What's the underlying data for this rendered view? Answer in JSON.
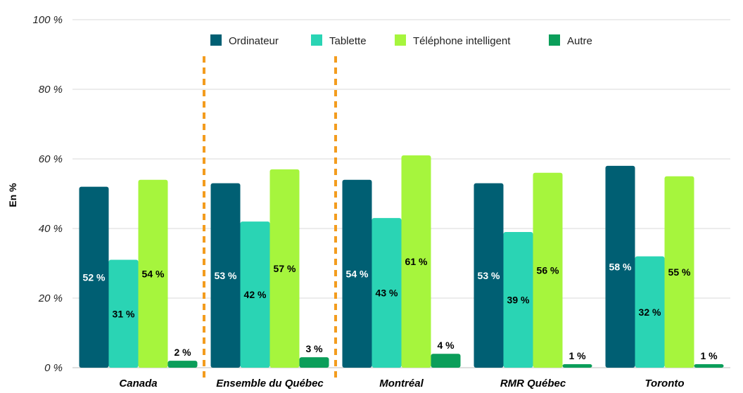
{
  "chart_data": {
    "type": "bar",
    "ylabel": "En %",
    "ylim": [
      0,
      100
    ],
    "yticks": [
      0,
      20,
      40,
      60,
      80,
      100
    ],
    "ytick_labels": [
      "0 %",
      "20 %",
      "40 %",
      "60 %",
      "80 %",
      "100 %"
    ],
    "grid": true,
    "legend_position": "top",
    "categories": [
      "Canada",
      "Ensemble du Québec",
      "Montréal",
      "RMR Québec",
      "Toronto"
    ],
    "series": [
      {
        "name": "Ordinateur",
        "color": "#005f73",
        "label_color": "#ffffff",
        "values": [
          52,
          53,
          54,
          53,
          58
        ],
        "labels": [
          "52 %",
          "53 %",
          "54 %",
          "53 %",
          "58 %"
        ]
      },
      {
        "name": "Tablette",
        "color": "#2ad4b4",
        "label_color": "#000000",
        "values": [
          31,
          42,
          43,
          39,
          32
        ],
        "labels": [
          "31 %",
          "42 %",
          "43 %",
          "39 %",
          "32 %"
        ]
      },
      {
        "name": "Téléphone intelligent",
        "color": "#a6f53d",
        "label_color": "#000000",
        "values": [
          54,
          57,
          61,
          56,
          55
        ],
        "labels": [
          "54 %",
          "57 %",
          "61 %",
          "56 %",
          "55 %"
        ]
      },
      {
        "name": "Autre",
        "color": "#0b9e5a",
        "label_color": "#000000",
        "values": [
          2,
          3,
          4,
          1,
          1
        ],
        "labels": [
          "2 %",
          "3 %",
          "4 %",
          "1 %",
          "1 %"
        ]
      }
    ],
    "separators": {
      "color": "#f39c1e",
      "after_categories": [
        "Canada",
        "Ensemble du Québec"
      ]
    }
  }
}
